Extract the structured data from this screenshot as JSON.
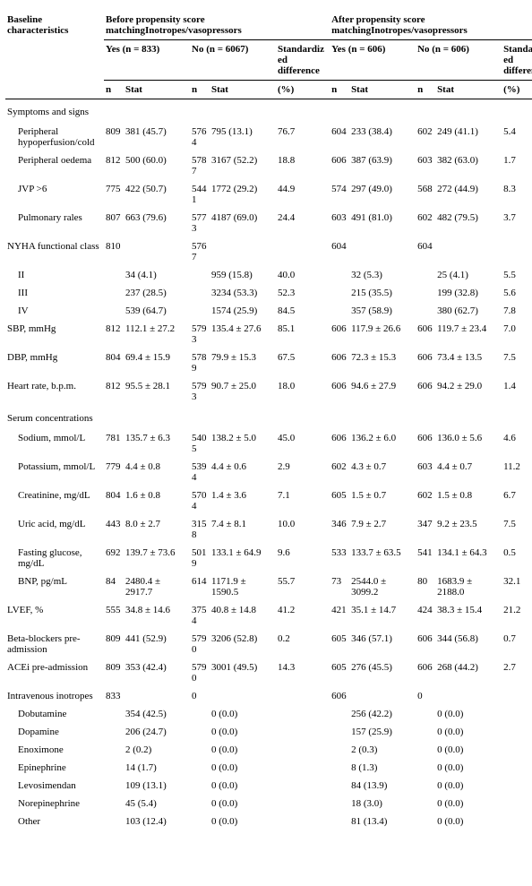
{
  "headers": {
    "baseline": "Baseline characteristics",
    "before": "Before propensity score matchingInotropes/vasopressors",
    "after": "After propensity score matchingInotropes/vasopressors",
    "yes_before": "Yes (n = 833)",
    "no_before": "No (n = 6067)",
    "yes_after": "Yes (n = 606)",
    "no_after": "No (n = 606)",
    "std_diff": "Standardized difference",
    "n": "n",
    "stat": "Stat",
    "pct": "(%)"
  },
  "sections": {
    "symptoms": "Symptoms and signs",
    "nyha": "NYHA functional class",
    "serum": "Serum concentrations",
    "inotropes": "Intravenous inotropes"
  },
  "rows": {
    "peripheral_cold": {
      "label": "Peripheral hypoperfusion/cold",
      "byN": "809",
      "byS": "381 (45.7)",
      "bnN": "5764",
      "bnS": "795 (13.1)",
      "bSD": "76.7",
      "ayN": "604",
      "ayS": "233 (38.4)",
      "anN": "602",
      "anS": "249 (41.1)",
      "aSD": "5.4"
    },
    "peripheral_oedema": {
      "label": "Peripheral oedema",
      "byN": "812",
      "byS": "500 (60.0)",
      "bnN": "5787",
      "bnS": "3167 (52.2)",
      "bSD": "18.8",
      "ayN": "606",
      "ayS": "387 (63.9)",
      "anN": "603",
      "anS": "382 (63.0)",
      "aSD": "1.7"
    },
    "jvp": {
      "label": "JVP >6",
      "byN": "775",
      "byS": "422 (50.7)",
      "bnN": "5441",
      "bnS": "1772 (29.2)",
      "bSD": "44.9",
      "ayN": "574",
      "ayS": "297 (49.0)",
      "anN": "568",
      "anS": "272 (44.9)",
      "aSD": "8.3"
    },
    "rales": {
      "label": "Pulmonary rales",
      "byN": "807",
      "byS": "663 (79.6)",
      "bnN": "5773",
      "bnS": "4187 (69.0)",
      "bSD": "24.4",
      "ayN": "603",
      "ayS": "491 (81.0)",
      "anN": "602",
      "anS": "482 (79.5)",
      "aSD": "3.7"
    },
    "nyha_n": {
      "byN": "810",
      "bnN": "5767",
      "ayN": "604",
      "anN": "604"
    },
    "nyha2": {
      "label": "II",
      "byS": "34 (4.1)",
      "bnS": "959 (15.8)",
      "bSD": "40.0",
      "ayS": "32 (5.3)",
      "anS": "25 (4.1)",
      "aSD": "5.5"
    },
    "nyha3": {
      "label": "III",
      "byS": "237 (28.5)",
      "bnS": "3234 (53.3)",
      "bSD": "52.3",
      "ayS": "215 (35.5)",
      "anS": "199 (32.8)",
      "aSD": "5.6"
    },
    "nyha4": {
      "label": "IV",
      "byS": "539 (64.7)",
      "bnS": "1574 (25.9)",
      "bSD": "84.5",
      "ayS": "357 (58.9)",
      "anS": "380 (62.7)",
      "aSD": "7.8"
    },
    "sbp": {
      "label": "SBP, mmHg",
      "byN": "812",
      "byS": "112.1 ± 27.2",
      "bnN": "5793",
      "bnS": "135.4 ± 27.6",
      "bSD": "85.1",
      "ayN": "606",
      "ayS": "117.9 ± 26.6",
      "anN": "606",
      "anS": "119.7 ± 23.4",
      "aSD": "7.0"
    },
    "dbp": {
      "label": "DBP, mmHg",
      "byN": "804",
      "byS": "69.4 ± 15.9",
      "bnN": "5789",
      "bnS": "79.9 ± 15.3",
      "bSD": "67.5",
      "ayN": "606",
      "ayS": "72.3 ± 15.3",
      "anN": "606",
      "anS": "73.4 ± 13.5",
      "aSD": "7.5"
    },
    "hr": {
      "label": "Heart rate, b.p.m.",
      "byN": "812",
      "byS": "95.5 ± 28.1",
      "bnN": "5793",
      "bnS": "90.7 ± 25.0",
      "bSD": "18.0",
      "ayN": "606",
      "ayS": "94.6 ± 27.9",
      "anN": "606",
      "anS": "94.2 ± 29.0",
      "aSD": "1.4"
    },
    "sodium": {
      "label": "Sodium, mmol/L",
      "byN": "781",
      "byS": "135.7 ± 6.3",
      "bnN": "5405",
      "bnS": "138.2 ± 5.0",
      "bSD": "45.0",
      "ayN": "606",
      "ayS": "136.2 ± 6.0",
      "anN": "606",
      "anS": "136.0 ± 5.6",
      "aSD": "4.6"
    },
    "potassium": {
      "label": "Potassium, mmol/L",
      "byN": "779",
      "byS": "4.4 ± 0.8",
      "bnN": "5394",
      "bnS": "4.4 ± 0.6",
      "bSD": "2.9",
      "ayN": "602",
      "ayS": "4.3 ± 0.7",
      "anN": "603",
      "anS": "4.4 ± 0.7",
      "aSD": "11.2"
    },
    "creatinine": {
      "label": "Creatinine, mg/dL",
      "byN": "804",
      "byS": "1.6 ± 0.8",
      "bnN": "5704",
      "bnS": "1.4 ± 3.6",
      "bSD": "7.1",
      "ayN": "605",
      "ayS": "1.5 ± 0.7",
      "anN": "602",
      "anS": "1.5 ± 0.8",
      "aSD": "6.7"
    },
    "uric": {
      "label": "Uric acid, mg/dL",
      "byN": "443",
      "byS": "8.0 ± 2.7",
      "bnN": "3158",
      "bnS": "7.4 ± 8.1",
      "bSD": "10.0",
      "ayN": "346",
      "ayS": "7.9 ± 2.7",
      "anN": "347",
      "anS": "9.2 ± 23.5",
      "aSD": "7.5"
    },
    "glucose": {
      "label": "Fasting glucose, mg/dL",
      "byN": "692",
      "byS": "139.7 ± 73.6",
      "bnN": "5019",
      "bnS": "133.1 ± 64.9",
      "bSD": "9.6",
      "ayN": "533",
      "ayS": "133.7 ± 63.5",
      "anN": "541",
      "anS": "134.1 ± 64.3",
      "aSD": "0.5"
    },
    "bnp": {
      "label": "BNP, pg/mL",
      "byN": "84",
      "byS": "2480.4 ± 2917.7",
      "bnN": "614",
      "bnS": "1171.9 ± 1590.5",
      "bSD": "55.7",
      "ayN": "73",
      "ayS": "2544.0 ± 3099.2",
      "anN": "80",
      "anS": "1683.9 ± 2188.0",
      "aSD": "32.1"
    },
    "lvef": {
      "label": "LVEF, %",
      "byN": "555",
      "byS": "34.8 ± 14.6",
      "bnN": "3754",
      "bnS": "40.8 ± 14.8",
      "bSD": "41.2",
      "ayN": "421",
      "ayS": "35.1 ± 14.7",
      "anN": "424",
      "anS": "38.3 ± 15.4",
      "aSD": "21.2"
    },
    "betablock": {
      "label": "Beta-blockers pre-admission",
      "byN": "809",
      "byS": "441 (52.9)",
      "bnN": "5790",
      "bnS": "3206 (52.8)",
      "bSD": "0.2",
      "ayN": "605",
      "ayS": "346 (57.1)",
      "anN": "606",
      "anS": "344 (56.8)",
      "aSD": "0.7"
    },
    "acei": {
      "label": "ACEi pre-admission",
      "byN": "809",
      "byS": "353 (42.4)",
      "bnN": "5790",
      "bnS": "3001 (49.5)",
      "bSD": "14.3",
      "ayN": "605",
      "ayS": "276 (45.5)",
      "anN": "606",
      "anS": "268 (44.2)",
      "aSD": "2.7"
    },
    "inotropes_n": {
      "byN": "833",
      "bnN": "0",
      "ayN": "606",
      "anN": "0"
    },
    "dobutamine": {
      "label": "Dobutamine",
      "byS": "354 (42.5)",
      "bnS": "0 (0.0)",
      "ayS": "256 (42.2)",
      "anS": "0 (0.0)"
    },
    "dopamine": {
      "label": "Dopamine",
      "byS": "206 (24.7)",
      "bnS": "0 (0.0)",
      "ayS": "157 (25.9)",
      "anS": "0 (0.0)"
    },
    "enoximone": {
      "label": "Enoximone",
      "byS": "2 (0.2)",
      "bnS": "0 (0.0)",
      "ayS": "2 (0.3)",
      "anS": "0 (0.0)"
    },
    "epinephrine": {
      "label": "Epinephrine",
      "byS": "14 (1.7)",
      "bnS": "0 (0.0)",
      "ayS": "8 (1.3)",
      "anS": "0 (0.0)"
    },
    "levosimendan": {
      "label": "Levosimendan",
      "byS": "109 (13.1)",
      "bnS": "0 (0.0)",
      "ayS": "84 (13.9)",
      "anS": "0 (0.0)"
    },
    "norepinephrine": {
      "label": "Norepinephrine",
      "byS": "45 (5.4)",
      "bnS": "0 (0.0)",
      "ayS": "18 (3.0)",
      "anS": "0 (0.0)"
    },
    "other": {
      "label": "Other",
      "byS": "103 (12.4)",
      "bnS": "0 (0.0)",
      "ayS": "81 (13.4)",
      "anS": "0 (0.0)"
    }
  }
}
